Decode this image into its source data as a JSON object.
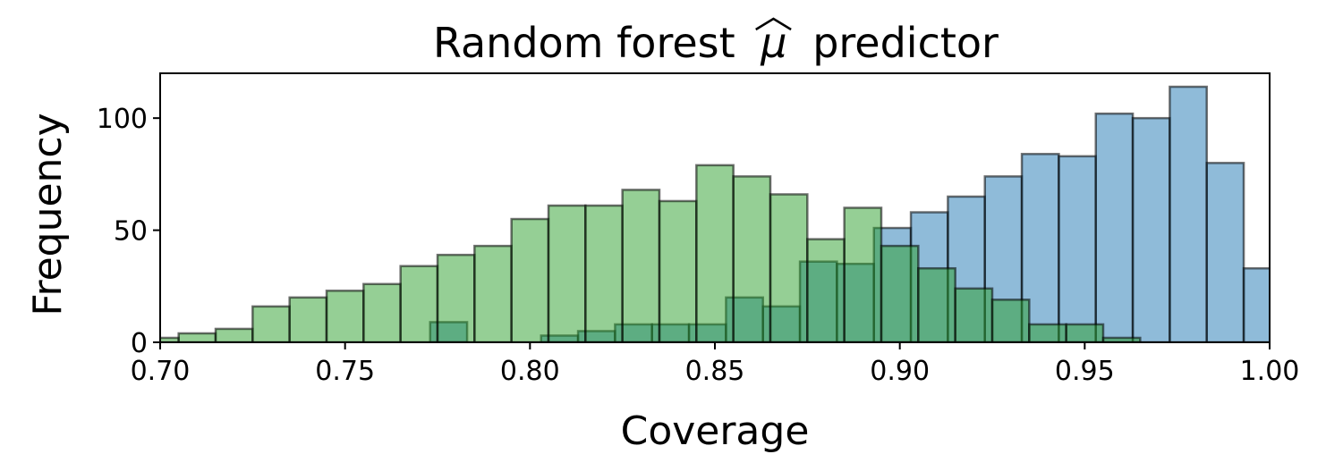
{
  "chart_data": {
    "type": "histogram",
    "title": "Random forest",
    "title_symbol": "μ",
    "title_suffix": "predictor",
    "xlabel": "Coverage",
    "ylabel": "Frequency",
    "xlim": [
      0.7,
      1.0
    ],
    "ylim": [
      0,
      120
    ],
    "xticks": [
      "0.70",
      "0.75",
      "0.80",
      "0.85",
      "0.90",
      "0.95",
      "1.00"
    ],
    "xtick_values": [
      0.7,
      0.75,
      0.8,
      0.85,
      0.9,
      0.95,
      1.0
    ],
    "yticks": [
      "0",
      "50",
      "100"
    ],
    "ytick_values": [
      0,
      50,
      100
    ],
    "grid": false,
    "legend": false,
    "series": [
      {
        "color": "#1f77b4",
        "opacity": 0.5,
        "bins": [
          [
            0.773,
            0.783,
            9
          ],
          [
            0.803,
            0.813,
            3
          ],
          [
            0.813,
            0.823,
            5
          ],
          [
            0.823,
            0.833,
            8
          ],
          [
            0.833,
            0.843,
            8
          ],
          [
            0.843,
            0.853,
            8
          ],
          [
            0.853,
            0.863,
            20
          ],
          [
            0.863,
            0.873,
            16
          ],
          [
            0.873,
            0.883,
            36
          ],
          [
            0.883,
            0.893,
            35
          ],
          [
            0.893,
            0.903,
            51
          ],
          [
            0.903,
            0.913,
            58
          ],
          [
            0.913,
            0.923,
            65
          ],
          [
            0.923,
            0.933,
            74
          ],
          [
            0.933,
            0.943,
            84
          ],
          [
            0.943,
            0.953,
            83
          ],
          [
            0.953,
            0.963,
            102
          ],
          [
            0.963,
            0.973,
            100
          ],
          [
            0.973,
            0.983,
            114
          ],
          [
            0.983,
            0.993,
            80
          ],
          [
            0.993,
            1.003,
            33
          ]
        ]
      },
      {
        "color": "#2ca02c",
        "opacity": 0.5,
        "bins": [
          [
            0.698,
            0.705,
            2
          ],
          [
            0.705,
            0.715,
            4
          ],
          [
            0.715,
            0.725,
            6
          ],
          [
            0.725,
            0.735,
            16
          ],
          [
            0.735,
            0.745,
            20
          ],
          [
            0.745,
            0.755,
            23
          ],
          [
            0.755,
            0.765,
            26
          ],
          [
            0.765,
            0.775,
            34
          ],
          [
            0.775,
            0.785,
            39
          ],
          [
            0.785,
            0.795,
            43
          ],
          [
            0.795,
            0.805,
            55
          ],
          [
            0.805,
            0.815,
            61
          ],
          [
            0.815,
            0.825,
            61
          ],
          [
            0.825,
            0.835,
            68
          ],
          [
            0.835,
            0.845,
            63
          ],
          [
            0.845,
            0.855,
            79
          ],
          [
            0.855,
            0.865,
            74
          ],
          [
            0.865,
            0.875,
            66
          ],
          [
            0.875,
            0.885,
            46
          ],
          [
            0.885,
            0.895,
            60
          ],
          [
            0.895,
            0.905,
            43
          ],
          [
            0.905,
            0.915,
            33
          ],
          [
            0.915,
            0.925,
            24
          ],
          [
            0.925,
            0.935,
            19
          ],
          [
            0.935,
            0.945,
            8
          ],
          [
            0.945,
            0.955,
            8
          ],
          [
            0.955,
            0.965,
            2
          ]
        ]
      }
    ]
  }
}
